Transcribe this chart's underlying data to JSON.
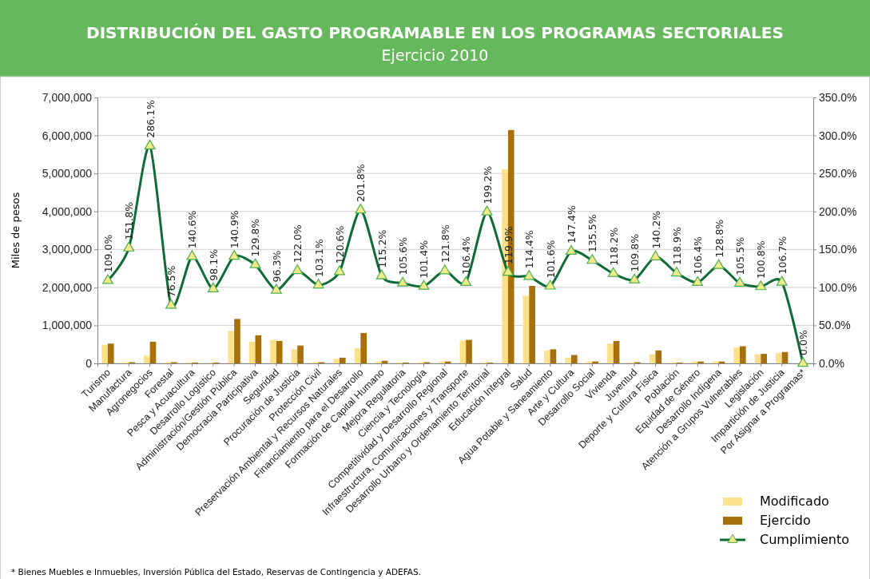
{
  "chart_data": {
    "type": "bar",
    "title": "DISTRIBUCIÓN DEL GASTO PROGRAMABLE EN LOS PROGRAMAS SECTORIALES",
    "subtitle": "Ejercicio 2010",
    "ylabel": "Miles de pesos",
    "categories": [
      "Turismo",
      "Manufactura",
      "Agronegocios",
      "Forestal",
      "Pesca y Acuacultura",
      "Desarrollo Logístico",
      "Administración/Gestión Pública",
      "Democracia Participativa",
      "Seguridad",
      "Procuración de Justicia",
      "Protección Civil",
      "Preservación Ambiental y Recursos Naturales",
      "Financiamiento para el Desarrollo",
      "Formación de Capital Humano",
      "Mejora Regulatoria",
      "Ciencia y Tecnología",
      "Competitividad y Desarrollo Regional",
      "Infraestructura, Comunicaciones y Transporte",
      "Desarrollo Urbano y Ordenamiento Territorial",
      "Educación Integral",
      "Salud",
      "Agua Potable y Saneamiento",
      "Arte y Cultura",
      "Desarrollo Social",
      "Vivienda",
      "Juventud",
      "Deporte y Cultura Física",
      "Población",
      "Equidad de Género",
      "Desarrollo Indígena",
      "Atención a Grupos Vulnerables",
      "Legislación",
      "Impartición de Justicia",
      "Por Asignar a Programas*"
    ],
    "series": [
      {
        "name": "Modificado",
        "color": "#fde08a",
        "values": [
          490000,
          30000,
          200000,
          30000,
          20000,
          20000,
          850000,
          570000,
          620000,
          370000,
          30000,
          120000,
          400000,
          50000,
          20000,
          30000,
          50000,
          600000,
          20000,
          5100000,
          1780000,
          340000,
          150000,
          50000,
          520000,
          30000,
          240000,
          20000,
          50000,
          50000,
          420000,
          240000,
          270000,
          0
        ]
      },
      {
        "name": "Ejercido",
        "color": "#a8700a",
        "values": [
          520000,
          30000,
          570000,
          30000,
          20000,
          20000,
          1170000,
          740000,
          590000,
          470000,
          30000,
          150000,
          800000,
          70000,
          20000,
          30000,
          50000,
          620000,
          20000,
          6140000,
          2040000,
          370000,
          220000,
          50000,
          590000,
          30000,
          340000,
          20000,
          50000,
          50000,
          450000,
          250000,
          300000,
          0
        ]
      },
      {
        "name": "Cumplimiento",
        "type": "line",
        "axis": "y2",
        "color": "#0e6b35",
        "marker": "triangle",
        "values": [
          109.0,
          151.8,
          286.1,
          76.5,
          140.6,
          98.1,
          140.9,
          129.8,
          96.3,
          122.0,
          103.1,
          120.6,
          201.8,
          115.2,
          105.6,
          101.4,
          121.8,
          106.4,
          199.2,
          119.9,
          114.4,
          101.6,
          147.4,
          135.5,
          118.2,
          109.8,
          140.2,
          118.9,
          106.4,
          128.8,
          105.5,
          100.8,
          106.7,
          0.0
        ],
        "value_labels": [
          "109.0%",
          "151.8%",
          "286.1%",
          "76.5%",
          "140.6%",
          "98.1%",
          "140.9%",
          "129.8%",
          "96.3%",
          "122.0%",
          "103.1%",
          "120.6%",
          "201.8%",
          "115.2%",
          "105.6%",
          "101.4%",
          "121.8%",
          "106.4%",
          "199.2%",
          "119.9%",
          "114.4%",
          "101.6%",
          "147.4%",
          "135.5%",
          "118.2%",
          "109.8%",
          "140.2%",
          "118.9%",
          "106.4%",
          "128.8%",
          "105.5%",
          "100.8%",
          "106.7%",
          "0.0%"
        ]
      }
    ],
    "ylim": [
      0,
      7000000
    ],
    "yticks": [
      {
        "value": 0,
        "label": "0"
      },
      {
        "value": 1000000,
        "label": "1,000,000"
      },
      {
        "value": 2000000,
        "label": "2,000,000"
      },
      {
        "value": 3000000,
        "label": "3,000,000"
      },
      {
        "value": 4000000,
        "label": "4,000,000"
      },
      {
        "value": 5000000,
        "label": "5,000,000"
      },
      {
        "value": 6000000,
        "label": "6,000,000"
      },
      {
        "value": 7000000,
        "label": "7,000,000"
      }
    ],
    "y2lim": [
      0,
      350
    ],
    "y2ticks": [
      {
        "value": 0,
        "label": "0.0%"
      },
      {
        "value": 50,
        "label": "50.0%"
      },
      {
        "value": 100,
        "label": "100.0%"
      },
      {
        "value": 150,
        "label": "150.0%"
      },
      {
        "value": 200,
        "label": "200.0%"
      },
      {
        "value": 250,
        "label": "250.0%"
      },
      {
        "value": 300,
        "label": "300.0%"
      },
      {
        "value": 350,
        "label": "350.0%"
      }
    ],
    "grid": "y",
    "legend": "bottom right",
    "annotations": [
      "* Bienes Muebles e Inmuebles, Inversión Pública del Estado, Reservas de Contingencia y ADEFAS."
    ]
  }
}
